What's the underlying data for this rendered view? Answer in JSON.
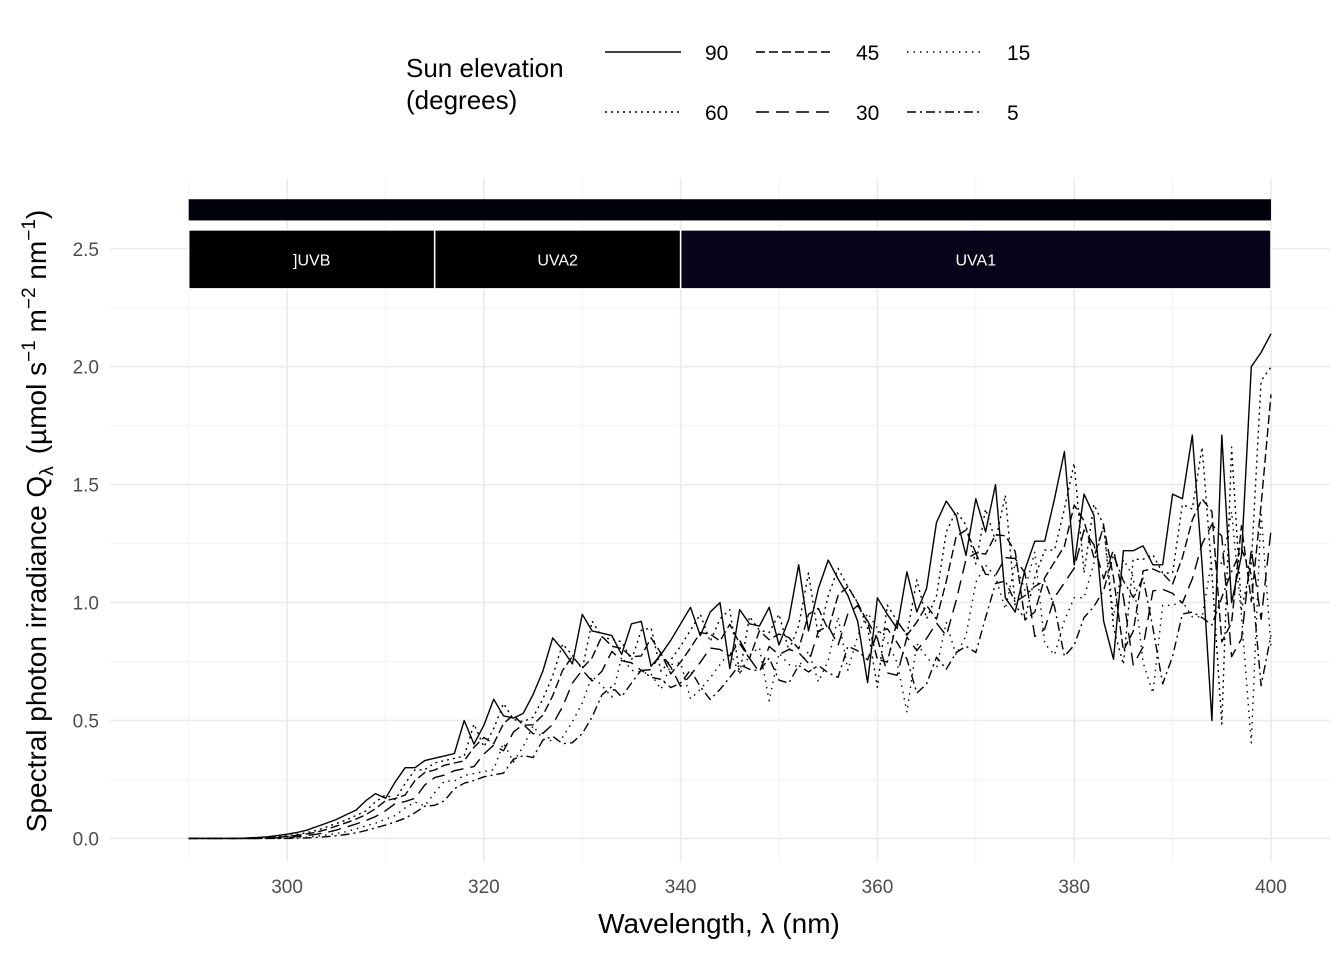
{
  "chart_data": {
    "type": "line",
    "title": "",
    "xlabel": "Wavelength, λ (nm)",
    "ylabel_main": "Spectral  photon  irradiance  Q",
    "ylabel_sub": "λ",
    "ylabel_units": "(µmol s",
    "ylabel_exp1": "−1",
    "ylabel_m": " m",
    "ylabel_exp2": "−2",
    "ylabel_nm": " nm",
    "ylabel_exp3": "−1",
    "ylabel_close": ")",
    "xlim": [
      282,
      406
    ],
    "ylim": [
      -0.1,
      2.8
    ],
    "x_ticks": [
      300,
      320,
      340,
      360,
      380,
      400
    ],
    "x_tick_labels": [
      "300",
      "320",
      "340",
      "360",
      "380",
      "400"
    ],
    "y_ticks": [
      0,
      0.5,
      1,
      1.5,
      2,
      2.5
    ],
    "y_tick_labels": [
      "0.0",
      "0.5",
      "1.0",
      "1.5",
      "2.0",
      "2.5"
    ],
    "legend": {
      "title_line1": "Sun elevation",
      "title_line2": "(degrees)",
      "position": "top"
    },
    "wavebands": [
      {
        "label": "]UVB",
        "from": 290,
        "to": 315,
        "color": "#000000"
      },
      {
        "label": "UVA2",
        "from": 315,
        "to": 340,
        "color": "#000000"
      },
      {
        "label": "UVA1",
        "from": 340,
        "to": 400,
        "color": "#06051a"
      }
    ],
    "x": [
      290,
      291,
      292,
      293,
      294,
      295,
      296,
      297,
      298,
      299,
      300,
      301,
      302,
      303,
      304,
      305,
      306,
      307,
      308,
      309,
      310,
      311,
      312,
      313,
      314,
      315,
      316,
      317,
      318,
      319,
      320,
      321,
      322,
      323,
      324,
      325,
      326,
      327,
      328,
      329,
      330,
      331,
      332,
      333,
      334,
      335,
      336,
      337,
      338,
      339,
      340,
      341,
      342,
      343,
      344,
      345,
      346,
      347,
      348,
      349,
      350,
      351,
      352,
      353,
      354,
      355,
      356,
      357,
      358,
      359,
      360,
      361,
      362,
      363,
      364,
      365,
      366,
      367,
      368,
      369,
      370,
      371,
      372,
      373,
      374,
      375,
      376,
      377,
      378,
      379,
      380,
      381,
      382,
      383,
      384,
      385,
      386,
      387,
      388,
      389,
      390,
      391,
      392,
      393,
      394,
      395,
      396,
      397,
      398,
      399,
      400
    ],
    "base_spectrum": [
      0,
      0,
      0,
      0,
      0,
      0,
      0.002,
      0.004,
      0.007,
      0.012,
      0.018,
      0.025,
      0.035,
      0.05,
      0.065,
      0.08,
      0.1,
      0.12,
      0.16,
      0.19,
      0.17,
      0.24,
      0.3,
      0.3,
      0.33,
      0.34,
      0.35,
      0.36,
      0.5,
      0.4,
      0.48,
      0.59,
      0.52,
      0.51,
      0.53,
      0.61,
      0.71,
      0.85,
      0.8,
      0.74,
      0.95,
      0.88,
      0.87,
      0.86,
      0.78,
      0.91,
      0.92,
      0.73,
      0.78,
      0.84,
      0.91,
      0.98,
      0.86,
      0.96,
      1.0,
      0.72,
      0.97,
      0.91,
      0.9,
      0.98,
      0.82,
      0.93,
      1.16,
      0.88,
      1.06,
      1.18,
      1.1,
      1.03,
      0.92,
      0.66,
      1.02,
      0.95,
      0.89,
      1.13,
      0.96,
      1.06,
      1.34,
      1.43,
      1.37,
      1.2,
      1.44,
      1.3,
      1.5,
      1.02,
      0.96,
      1.14,
      1.26,
      1.26,
      1.44,
      1.64,
      1.16,
      1.46,
      1.37,
      0.92,
      0.76,
      1.22,
      1.22,
      1.24,
      1.16,
      1.16,
      1.46,
      1.44,
      1.71,
      1.16,
      0.5,
      1.71,
      1.0,
      1.2,
      2.0,
      2.06,
      2.14
    ],
    "series": [
      {
        "name": "90",
        "label": "90",
        "factor": 1.0,
        "shift": 0,
        "dash": ""
      },
      {
        "name": "60",
        "label": "60",
        "factor": 0.97,
        "shift": 1.0,
        "dash": "2,4"
      },
      {
        "name": "45",
        "label": "45",
        "factor": 0.93,
        "shift": 1.6,
        "dash": "9,4"
      },
      {
        "name": "30",
        "label": "30",
        "factor": 0.86,
        "shift": 2.6,
        "dash": "13,7"
      },
      {
        "name": "15",
        "label": "15",
        "factor": 0.81,
        "shift": 4.0,
        "dash": "1.5,5"
      },
      {
        "name": "5",
        "label": "5",
        "factor": 0.78,
        "shift": 5.5,
        "dash": "9,4,2,4"
      }
    ]
  }
}
